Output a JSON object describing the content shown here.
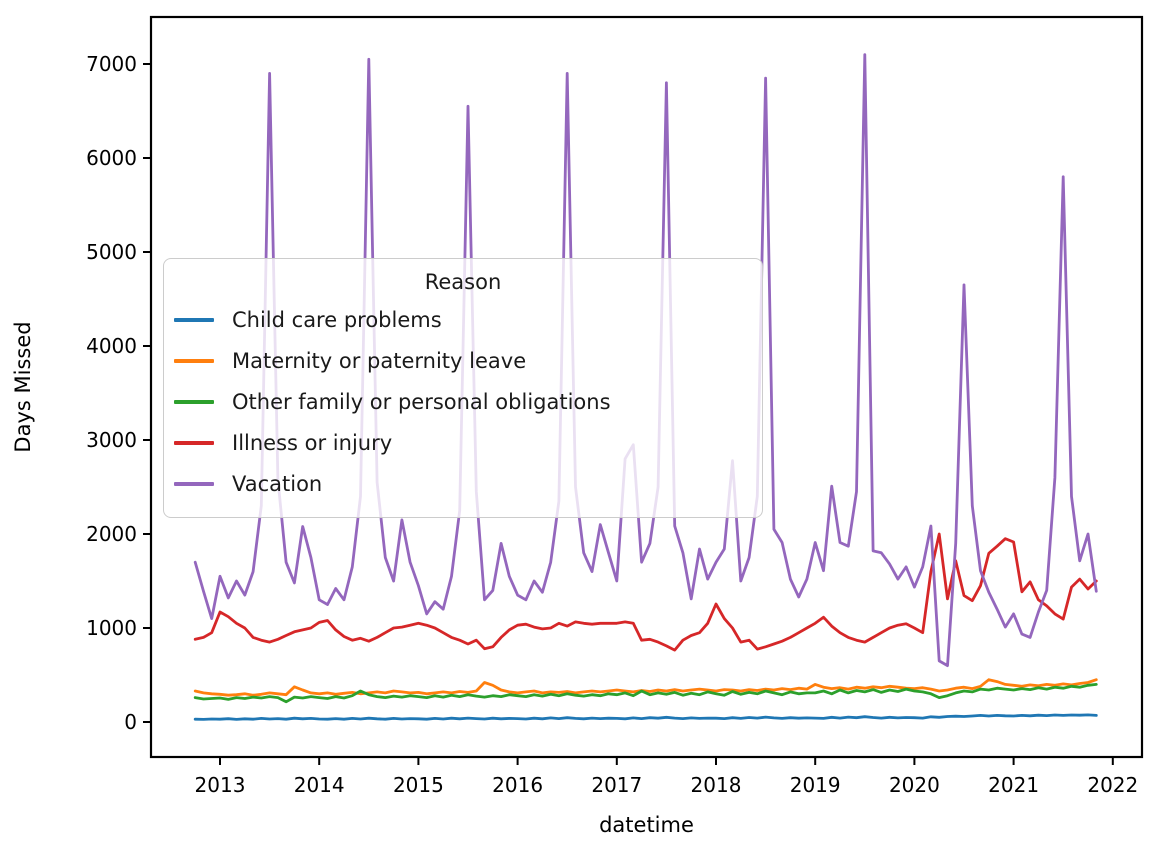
{
  "chart_data": {
    "type": "line",
    "title": "",
    "xlabel": "datetime",
    "ylabel": "Days Missed",
    "x_tick_labels": [
      "2013",
      "2014",
      "2015",
      "2016",
      "2017",
      "2018",
      "2019",
      "2020",
      "2021",
      "2022"
    ],
    "y_ticks": [
      0,
      1000,
      2000,
      3000,
      4000,
      5000,
      6000,
      7000
    ],
    "ylim": [
      -370,
      7480
    ],
    "grid": "off",
    "legend": {
      "title": "Reason",
      "position": "center-left"
    },
    "x_frequency": "monthly",
    "months": [
      "2012-10",
      "2012-11",
      "2012-12",
      "2013-01",
      "2013-02",
      "2013-03",
      "2013-04",
      "2013-05",
      "2013-06",
      "2013-07",
      "2013-08",
      "2013-09",
      "2013-10",
      "2013-11",
      "2013-12",
      "2014-01",
      "2014-02",
      "2014-03",
      "2014-04",
      "2014-05",
      "2014-06",
      "2014-07",
      "2014-08",
      "2014-09",
      "2014-10",
      "2014-11",
      "2014-12",
      "2015-01",
      "2015-02",
      "2015-03",
      "2015-04",
      "2015-05",
      "2015-06",
      "2015-07",
      "2015-08",
      "2015-09",
      "2015-10",
      "2015-11",
      "2015-12",
      "2016-01",
      "2016-02",
      "2016-03",
      "2016-04",
      "2016-05",
      "2016-06",
      "2016-07",
      "2016-08",
      "2016-09",
      "2016-10",
      "2016-11",
      "2016-12",
      "2017-01",
      "2017-02",
      "2017-03",
      "2017-04",
      "2017-05",
      "2017-06",
      "2017-07",
      "2017-08",
      "2017-09",
      "2017-10",
      "2017-11",
      "2017-12",
      "2018-01",
      "2018-02",
      "2018-03",
      "2018-04",
      "2018-05",
      "2018-06",
      "2018-07",
      "2018-08",
      "2018-09",
      "2018-10",
      "2018-11",
      "2018-12",
      "2019-01",
      "2019-02",
      "2019-03",
      "2019-04",
      "2019-05",
      "2019-06",
      "2019-07",
      "2019-08",
      "2019-09",
      "2019-10",
      "2019-11",
      "2019-12",
      "2020-01",
      "2020-02",
      "2020-03",
      "2020-04",
      "2020-05",
      "2020-06",
      "2020-07",
      "2020-08",
      "2020-09",
      "2020-10",
      "2020-11",
      "2020-12",
      "2021-01",
      "2021-02",
      "2021-03",
      "2021-04",
      "2021-05",
      "2021-06",
      "2021-07",
      "2021-08",
      "2021-09",
      "2021-10",
      "2021-11"
    ],
    "series": [
      {
        "name": "Child care problems",
        "color": "#1f77b4",
        "values": [
          30,
          28,
          32,
          30,
          35,
          28,
          34,
          30,
          38,
          32,
          36,
          30,
          40,
          34,
          38,
          32,
          30,
          36,
          30,
          38,
          32,
          40,
          34,
          30,
          38,
          32,
          36,
          34,
          30,
          38,
          32,
          40,
          34,
          42,
          36,
          32,
          40,
          34,
          38,
          36,
          32,
          40,
          34,
          44,
          36,
          46,
          38,
          34,
          42,
          36,
          40,
          38,
          34,
          44,
          36,
          46,
          40,
          50,
          42,
          36,
          44,
          38,
          42,
          40,
          36,
          46,
          38,
          48,
          42,
          52,
          44,
          38,
          46,
          40,
          44,
          42,
          38,
          50,
          42,
          52,
          46,
          56,
          48,
          42,
          50,
          44,
          48,
          46,
          42,
          55,
          50,
          58,
          62,
          58,
          64,
          70,
          64,
          70,
          66,
          64,
          70,
          66,
          72,
          68,
          74,
          70,
          75,
          72,
          76,
          70
        ]
      },
      {
        "name": "Maternity or paternity leave",
        "color": "#ff7f0e",
        "values": [
          330,
          310,
          300,
          295,
          285,
          290,
          300,
          285,
          295,
          310,
          300,
          290,
          375,
          340,
          310,
          300,
          310,
          295,
          305,
          315,
          300,
          310,
          320,
          310,
          330,
          320,
          310,
          315,
          300,
          310,
          320,
          310,
          325,
          315,
          330,
          420,
          390,
          340,
          320,
          310,
          320,
          330,
          310,
          320,
          315,
          325,
          310,
          320,
          330,
          320,
          330,
          340,
          330,
          320,
          335,
          325,
          340,
          330,
          345,
          330,
          340,
          350,
          340,
          330,
          345,
          340,
          330,
          345,
          335,
          350,
          340,
          355,
          345,
          360,
          350,
          400,
          370,
          355,
          365,
          350,
          370,
          360,
          375,
          365,
          380,
          370,
          360,
          355,
          365,
          350,
          330,
          340,
          360,
          370,
          355,
          380,
          450,
          430,
          400,
          390,
          380,
          395,
          385,
          400,
          390,
          405,
          395,
          410,
          420,
          450
        ]
      },
      {
        "name": "Other family or personal obligations",
        "color": "#2ca02c",
        "values": [
          260,
          245,
          250,
          255,
          240,
          260,
          250,
          265,
          255,
          270,
          260,
          215,
          265,
          255,
          270,
          260,
          250,
          270,
          255,
          280,
          330,
          290,
          270,
          260,
          275,
          265,
          280,
          270,
          260,
          280,
          265,
          285,
          270,
          290,
          275,
          265,
          280,
          270,
          290,
          280,
          270,
          290,
          275,
          295,
          280,
          300,
          285,
          275,
          290,
          280,
          300,
          290,
          310,
          280,
          330,
          290,
          310,
          295,
          315,
          285,
          305,
          290,
          320,
          300,
          285,
          325,
          295,
          315,
          300,
          330,
          310,
          290,
          320,
          300,
          310,
          310,
          330,
          300,
          340,
          310,
          335,
          320,
          345,
          315,
          340,
          325,
          350,
          330,
          320,
          300,
          260,
          280,
          310,
          330,
          320,
          350,
          340,
          360,
          350,
          340,
          355,
          345,
          365,
          350,
          370,
          360,
          380,
          370,
          390,
          400
        ]
      },
      {
        "name": "Illness or injury",
        "color": "#d62728",
        "values": [
          880,
          900,
          950,
          1170,
          1120,
          1050,
          1000,
          900,
          870,
          850,
          880,
          920,
          960,
          980,
          1000,
          1060,
          1080,
          980,
          910,
          870,
          890,
          860,
          900,
          950,
          1000,
          1010,
          1030,
          1050,
          1030,
          1000,
          950,
          900,
          870,
          830,
          870,
          780,
          800,
          900,
          980,
          1030,
          1040,
          1010,
          990,
          1000,
          1050,
          1020,
          1065,
          1050,
          1040,
          1050,
          1050,
          1050,
          1065,
          1050,
          870,
          880,
          850,
          810,
          765,
          870,
          920,
          950,
          1050,
          1255,
          1100,
          1000,
          850,
          870,
          775,
          800,
          830,
          860,
          900,
          950,
          1000,
          1050,
          1115,
          1020,
          950,
          900,
          870,
          850,
          900,
          950,
          1000,
          1030,
          1045,
          1000,
          950,
          1600,
          2000,
          1310,
          1715,
          1345,
          1290,
          1450,
          1795,
          1870,
          1950,
          1915,
          1385,
          1490,
          1300,
          1235,
          1150,
          1095,
          1435,
          1520,
          1415,
          1500
        ]
      },
      {
        "name": "Vacation",
        "color": "#9467bd",
        "values": [
          1700,
          1390,
          1100,
          1550,
          1320,
          1500,
          1350,
          1600,
          2300,
          6900,
          2580,
          1700,
          1480,
          2080,
          1750,
          1300,
          1250,
          1420,
          1300,
          1650,
          2400,
          7050,
          2550,
          1750,
          1500,
          2150,
          1700,
          1450,
          1150,
          1280,
          1200,
          1550,
          2250,
          6550,
          2450,
          1300,
          1400,
          1900,
          1550,
          1350,
          1300,
          1500,
          1380,
          1700,
          2350,
          6900,
          2500,
          1800,
          1600,
          2100,
          1800,
          1500,
          2800,
          2950,
          1700,
          1900,
          2500,
          6800,
          2085,
          1800,
          1310,
          1840,
          1520,
          1700,
          1840,
          2780,
          1500,
          1750,
          2400,
          6850,
          2050,
          1910,
          1520,
          1330,
          1520,
          1910,
          1610,
          2510,
          1910,
          1870,
          2450,
          7100,
          1820,
          1800,
          1680,
          1520,
          1650,
          1435,
          1650,
          2085,
          650,
          600,
          1900,
          4650,
          2300,
          1610,
          1380,
          1200,
          1010,
          1150,
          935,
          900,
          1170,
          1400,
          2600,
          5800,
          2400,
          1715,
          2000,
          1390
        ]
      }
    ]
  }
}
